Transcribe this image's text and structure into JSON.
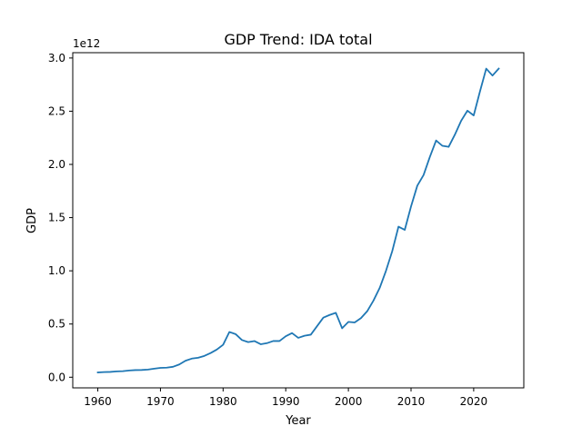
{
  "chart_data": {
    "type": "line",
    "title": "GDP Trend: IDA total",
    "xlabel": "Year",
    "ylabel": "GDP",
    "y_offset_label": "1e12",
    "xlim": [
      1956,
      2028
    ],
    "ylim": [
      -0.1,
      3.05
    ],
    "y_scale_note": "values in units of 1e12",
    "x_ticks": [
      1960,
      1970,
      1980,
      1990,
      2000,
      2010,
      2020
    ],
    "x_tick_labels": [
      "1960",
      "1970",
      "1980",
      "1990",
      "2000",
      "2010",
      "2020"
    ],
    "y_ticks": [
      0.0,
      0.5,
      1.0,
      1.5,
      2.0,
      2.5,
      3.0
    ],
    "y_tick_labels": [
      "0.0",
      "0.5",
      "1.0",
      "1.5",
      "2.0",
      "2.5",
      "3.0"
    ],
    "grid": false,
    "series": [
      {
        "color": "#1f77b4",
        "x": [
          1960,
          1961,
          1962,
          1963,
          1964,
          1965,
          1966,
          1967,
          1968,
          1969,
          1970,
          1971,
          1972,
          1973,
          1974,
          1975,
          1976,
          1977,
          1978,
          1979,
          1980,
          1981,
          1982,
          1983,
          1984,
          1985,
          1986,
          1987,
          1988,
          1989,
          1990,
          1991,
          1992,
          1993,
          1994,
          1995,
          1996,
          1997,
          1998,
          1999,
          2000,
          2001,
          2002,
          2003,
          2004,
          2005,
          2006,
          2007,
          2008,
          2009,
          2010,
          2011,
          2012,
          2013,
          2014,
          2015,
          2016,
          2017,
          2018,
          2019,
          2020,
          2021,
          2022,
          2023,
          2024
        ],
        "y": [
          0.045,
          0.048,
          0.05,
          0.055,
          0.057,
          0.063,
          0.067,
          0.068,
          0.072,
          0.08,
          0.088,
          0.09,
          0.098,
          0.12,
          0.155,
          0.175,
          0.183,
          0.2,
          0.227,
          0.26,
          0.305,
          0.425,
          0.405,
          0.35,
          0.33,
          0.34,
          0.31,
          0.32,
          0.34,
          0.34,
          0.385,
          0.415,
          0.37,
          0.39,
          0.4,
          0.48,
          0.56,
          0.585,
          0.605,
          0.46,
          0.52,
          0.515,
          0.555,
          0.62,
          0.72,
          0.84,
          1.0,
          1.185,
          1.415,
          1.385,
          1.605,
          1.8,
          1.9,
          2.07,
          2.225,
          2.175,
          2.165,
          2.28,
          2.41,
          2.505,
          2.46,
          2.685,
          2.9,
          2.835,
          2.9
        ]
      }
    ]
  }
}
